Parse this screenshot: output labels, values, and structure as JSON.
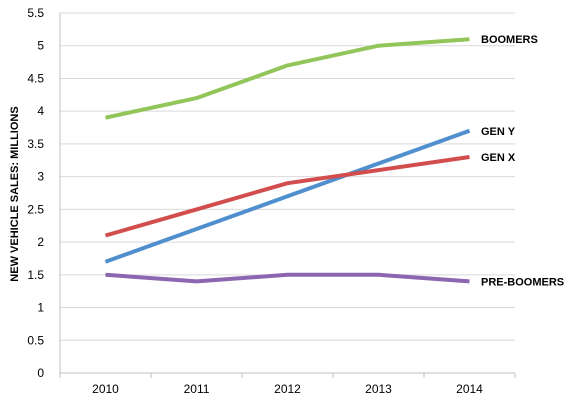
{
  "chart_data": {
    "type": "line",
    "title": "",
    "xlabel": "",
    "ylabel": "NEW VEHICLE SALES: MILLIONS",
    "x": [
      "2010",
      "2011",
      "2012",
      "2013",
      "2014"
    ],
    "ylim": [
      0,
      5.5
    ],
    "yticks": [
      "0",
      "0.5",
      "1",
      "1.5",
      "2",
      "2.5",
      "3",
      "3.5",
      "4",
      "4.5",
      "5",
      "5.5"
    ],
    "grid": true,
    "series": [
      {
        "name": "BOOMERS",
        "color": "#92c55a",
        "values": [
          3.9,
          4.2,
          4.7,
          5.0,
          5.1
        ]
      },
      {
        "name": "GEN Y",
        "color": "#4f8fce",
        "values": [
          1.7,
          2.2,
          2.7,
          3.2,
          3.7
        ]
      },
      {
        "name": "GEN X",
        "color": "#d24d4d",
        "values": [
          2.1,
          2.5,
          2.9,
          3.1,
          3.3
        ]
      },
      {
        "name": "PRE-BOOMERS",
        "color": "#8c66b0",
        "values": [
          1.5,
          1.4,
          1.5,
          1.5,
          1.4
        ]
      }
    ]
  }
}
